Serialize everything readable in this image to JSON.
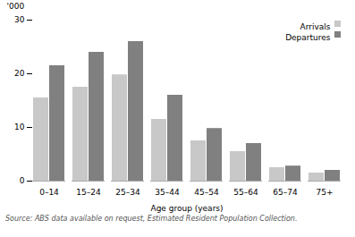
{
  "chart_data": {
    "type": "bar",
    "categories": [
      "0–14",
      "15–24",
      "25–34",
      "35–44",
      "45–54",
      "55–64",
      "65–74",
      "75+"
    ],
    "series": [
      {
        "name": "Arrivals",
        "color": "#c8c8c8",
        "values": [
          15.5,
          17.5,
          19.8,
          11.5,
          7.5,
          5.5,
          2.5,
          1.5
        ]
      },
      {
        "name": "Departures",
        "color": "#808080",
        "values": [
          21.5,
          24.0,
          26.0,
          16.0,
          9.8,
          7.0,
          2.8,
          2.0
        ]
      }
    ],
    "ylim": [
      0,
      30
    ],
    "yticks": [
      0,
      10,
      20,
      30
    ],
    "xlabel": "Age group (years)",
    "ylabel": "'000",
    "legend": "upper right",
    "source": "Source: ABS data available on request, Estimated Resident Population Collection."
  }
}
